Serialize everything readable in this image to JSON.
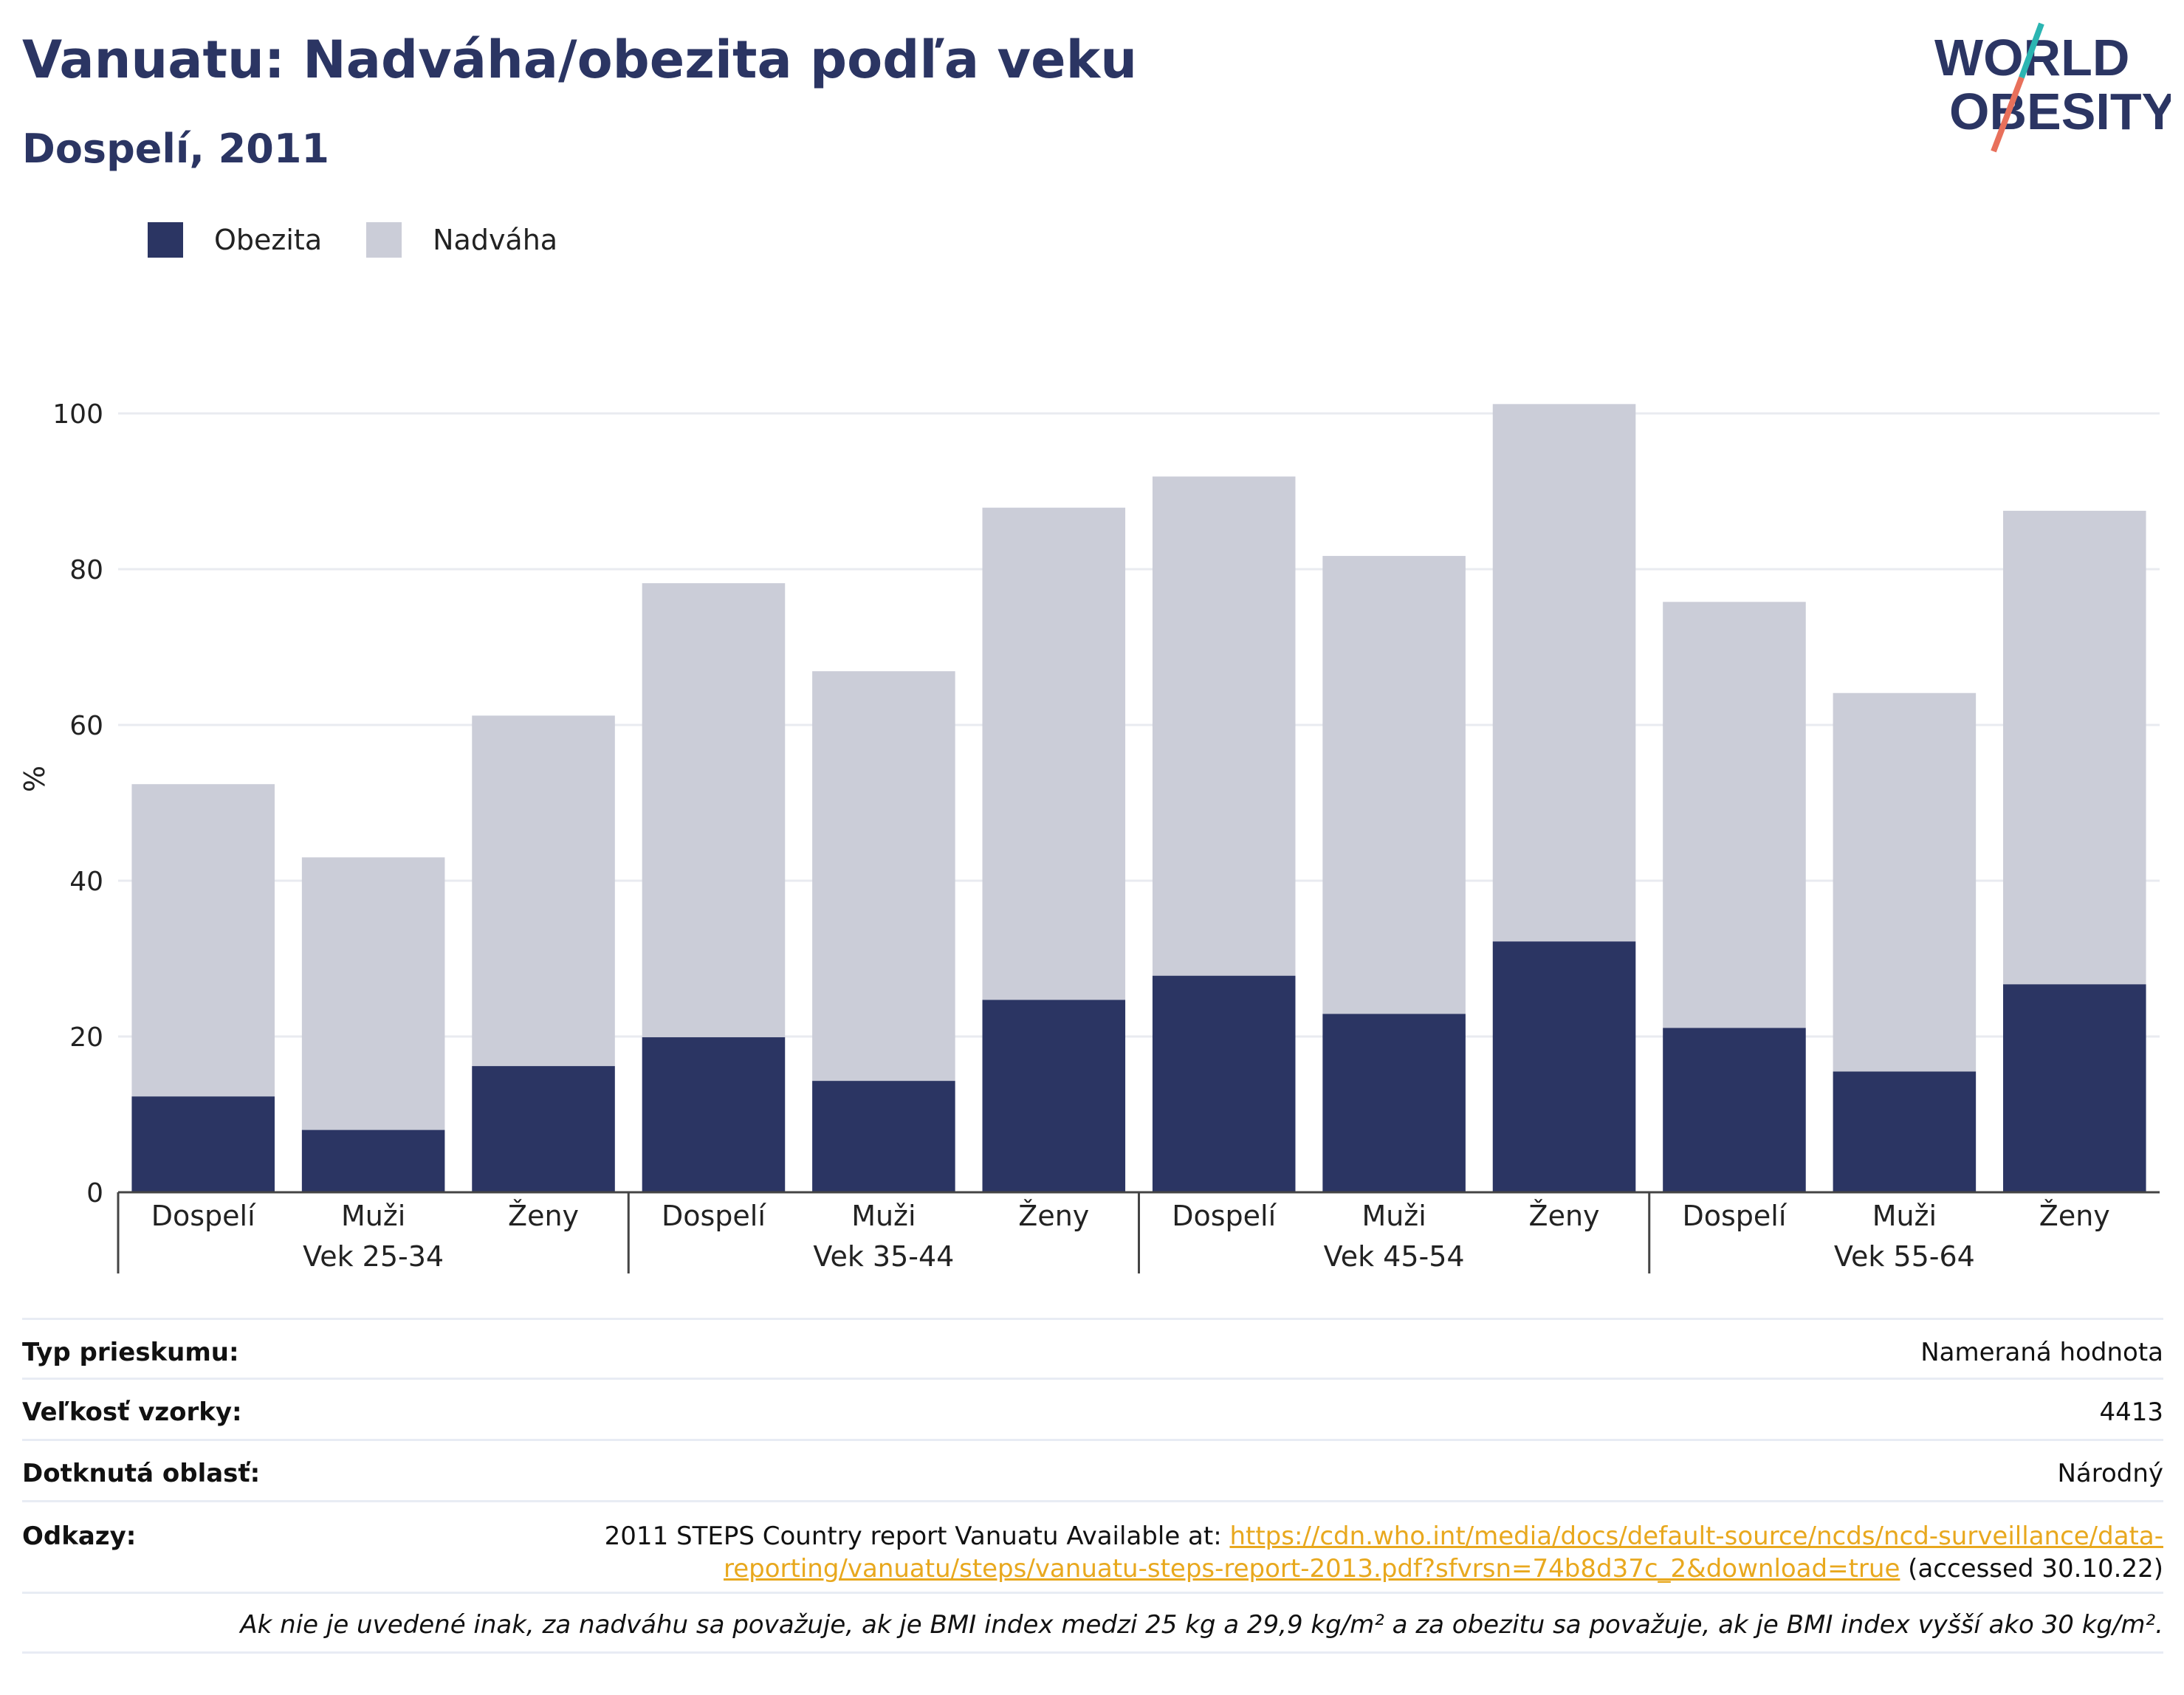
{
  "header": {
    "title": "Vanuatu: Nadváha/obezita podľa veku",
    "subtitle": "Dospelí, 2011"
  },
  "logo": {
    "line1": "WORLD",
    "line2": "OBESITY",
    "colors": {
      "text": "#2b3563",
      "accent_top": "#2bb5b2",
      "accent_bottom": "#e8705b"
    }
  },
  "legend": {
    "items": [
      {
        "label": "Obezita",
        "color": "#2b3563"
      },
      {
        "label": "Nadváha",
        "color": "#cbcdd8"
      }
    ]
  },
  "chart_data": {
    "type": "bar",
    "stacked": true,
    "ylabel": "%",
    "ylim": [
      0,
      105
    ],
    "yticks": [
      0,
      20,
      40,
      60,
      80,
      100
    ],
    "grid": true,
    "groups": [
      {
        "label": "Vek 25-34",
        "categories": [
          "Dospelí",
          "Muži",
          "Ženy"
        ]
      },
      {
        "label": "Vek 35-44",
        "categories": [
          "Dospelí",
          "Muži",
          "Ženy"
        ]
      },
      {
        "label": "Vek 45-54",
        "categories": [
          "Dospelí",
          "Muži",
          "Ženy"
        ]
      },
      {
        "label": "Vek 55-64",
        "categories": [
          "Dospelí",
          "Muži",
          "Ženy"
        ]
      }
    ],
    "series": [
      {
        "name": "Obezita",
        "color": "#2b3563",
        "values": [
          12.3,
          8.0,
          16.2,
          19.9,
          14.3,
          24.7,
          27.8,
          22.9,
          32.2,
          21.1,
          15.5,
          26.7
        ]
      },
      {
        "name": "Nadváha",
        "color": "#cbcdd8",
        "values": [
          40.1,
          35.0,
          45.0,
          58.3,
          52.6,
          63.2,
          64.1,
          58.8,
          69.0,
          54.7,
          48.6,
          60.8
        ]
      }
    ]
  },
  "info_table": {
    "rows": [
      {
        "key": "Typ prieskumu:",
        "value": "Nameraná hodnota"
      },
      {
        "key": "Veľkosť vzorky:",
        "value": "4413"
      },
      {
        "key": "Dotknutá oblasť:",
        "value": "Národný"
      }
    ],
    "reference": {
      "key": "Odkazy:",
      "prefix": "2011 STEPS Country report Vanuatu Available at: ",
      "link": "https://cdn.who.int/media/docs/default-source/ncds/ncd-surveillance/data-reporting/vanuatu/steps/vanuatu-steps-report-2013.pdf?sfvrsn=74b8d37c_2&download=true",
      "suffix": " (accessed 30.10.22)"
    },
    "note": "Ak nie je uvedené inak, za nadváhu sa považuje, ak je BMI index medzi 25 kg a 29,9 kg/m² a za obezitu sa považuje, ak je BMI index vyšší ako 30 kg/m²."
  }
}
